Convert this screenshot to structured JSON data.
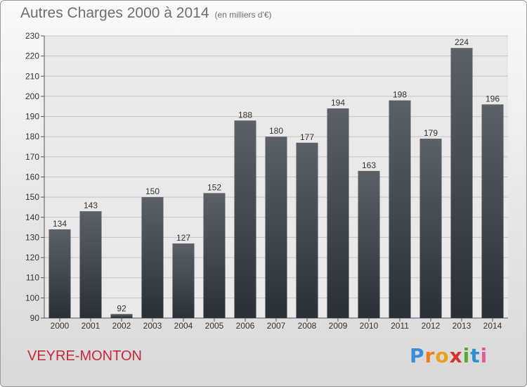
{
  "chart_data": {
    "type": "bar",
    "title": "Autres Charges 2000 à 2014",
    "subtitle": "(en milliers d'€)",
    "categories": [
      "2000",
      "2001",
      "2002",
      "2003",
      "2004",
      "2005",
      "2006",
      "2007",
      "2008",
      "2009",
      "2010",
      "2011",
      "2012",
      "2013",
      "2014"
    ],
    "values": [
      134,
      143,
      92,
      150,
      127,
      152,
      188,
      180,
      177,
      194,
      163,
      198,
      179,
      224,
      196
    ],
    "ylim": [
      90,
      230
    ],
    "yticks": [
      90,
      100,
      110,
      120,
      130,
      140,
      150,
      160,
      170,
      180,
      190,
      200,
      210,
      220,
      230
    ],
    "grid": true,
    "bar_color_top": "#5c6168",
    "bar_color_bottom": "#2b3037"
  },
  "footer": {
    "commune": "VEYRE-MONTON",
    "logo_letters": [
      "P",
      "r",
      "o",
      "x",
      "i",
      "t",
      "i"
    ],
    "logo_colors": [
      "#3a8fd8",
      "#f07d1a",
      "#e8a21b",
      "#d8322e",
      "#59a92f",
      "#2f8fd0",
      "#e45d9a"
    ]
  }
}
